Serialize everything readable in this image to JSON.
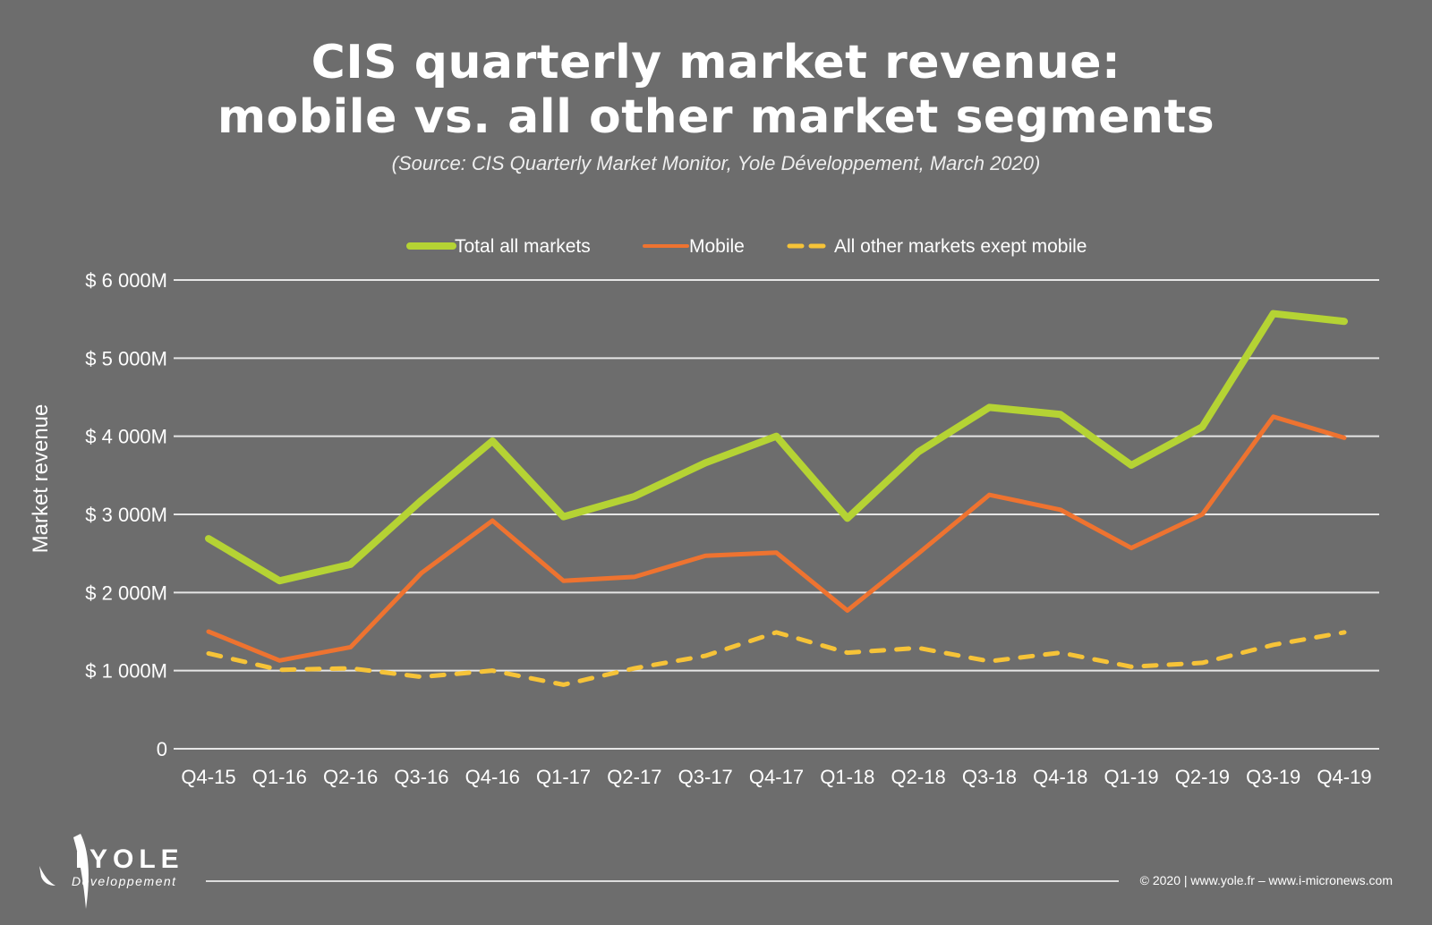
{
  "title_line1": "CIS quarterly market revenue:",
  "title_line2": "mobile vs. all other market segments",
  "subtitle": "(Source: CIS Quarterly Market Monitor, Yole Développement, March 2020)",
  "footer": {
    "logo_text": "YOLE",
    "logo_subtext": "Développement",
    "copyright": "© 2020 | www.yole.fr – www.i-micronews.com"
  },
  "chart_data": {
    "type": "line",
    "title": "CIS quarterly market revenue: mobile vs. all other market segments",
    "ylabel": "Market revenue",
    "xlabel": "",
    "ylim": [
      0,
      6000
    ],
    "grid": true,
    "legend_position": "top",
    "y_ticks": [
      0,
      1000,
      2000,
      3000,
      4000,
      5000,
      6000
    ],
    "y_tick_labels": [
      "0",
      "$ 1 000M",
      "$ 2 000M",
      "$ 3 000M",
      "$ 4 000M",
      "$ 5 000M",
      "$ 6 000M"
    ],
    "categories": [
      "Q4-15",
      "Q1-16",
      "Q2-16",
      "Q3-16",
      "Q4-16",
      "Q1-17",
      "Q2-17",
      "Q3-17",
      "Q4-17",
      "Q1-18",
      "Q2-18",
      "Q3-18",
      "Q4-18",
      "Q1-19",
      "Q2-19",
      "Q3-19",
      "Q4-19"
    ],
    "series": [
      {
        "name": "Total all markets",
        "color": "#b5d334",
        "style": "solid",
        "values": [
          2690,
          2150,
          2360,
          3180,
          3940,
          2970,
          3230,
          3660,
          4000,
          2950,
          3800,
          4370,
          4280,
          3630,
          4120,
          5570,
          5470
        ]
      },
      {
        "name": "Mobile",
        "color": "#ee7330",
        "style": "solid",
        "values": [
          1500,
          1130,
          1300,
          2250,
          2920,
          2150,
          2200,
          2470,
          2510,
          1770,
          2500,
          3250,
          3060,
          2570,
          3000,
          4250,
          3980
        ]
      },
      {
        "name": "All other markets exept mobile",
        "color": "#f6c338",
        "style": "dashed",
        "values": [
          1220,
          1010,
          1030,
          920,
          1000,
          820,
          1030,
          1190,
          1490,
          1230,
          1290,
          1120,
          1230,
          1050,
          1100,
          1330,
          1490
        ]
      }
    ]
  }
}
